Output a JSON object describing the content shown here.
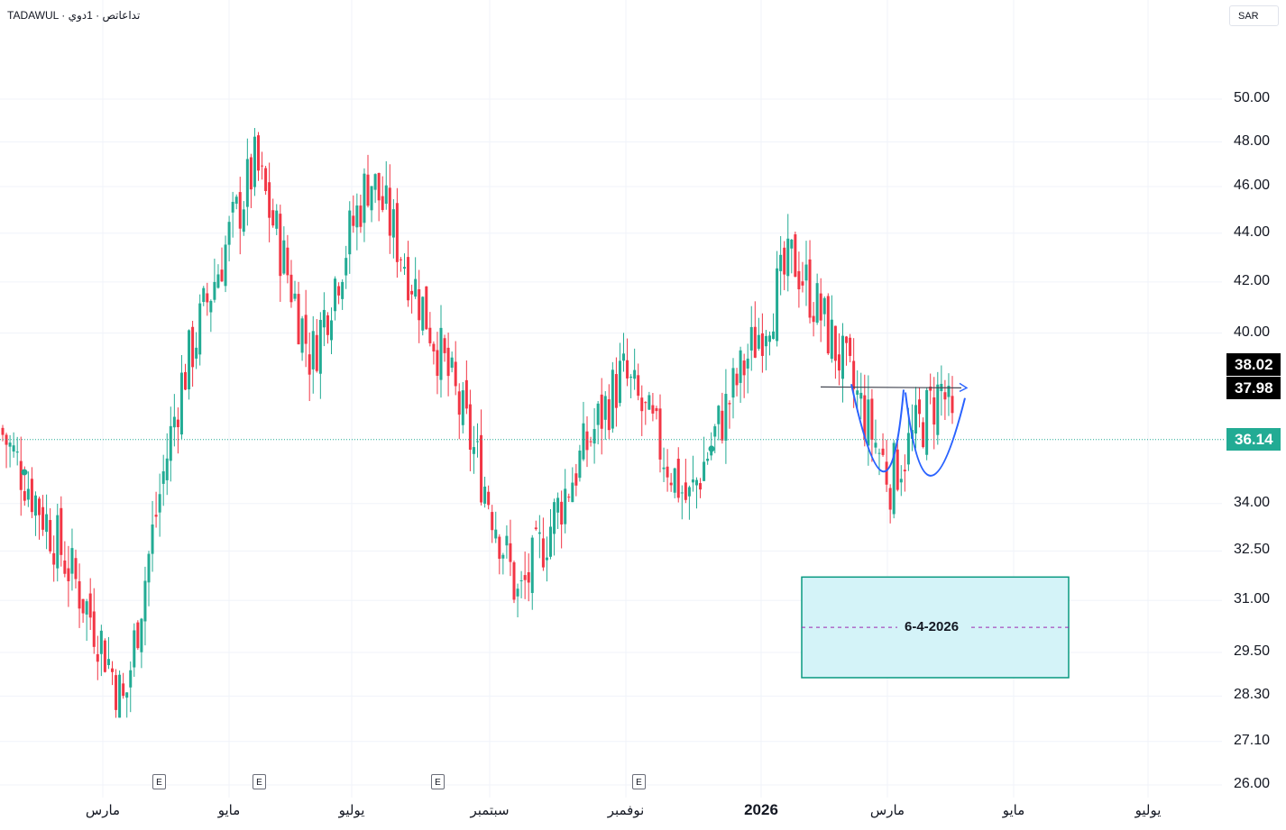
{
  "header": {
    "exchange": "TADAWUL",
    "separator": "·",
    "session": "تداعاتص",
    "interval": "1دوي"
  },
  "currency_button": "SAR",
  "price_axis_labels": [
    "50.00",
    "48.00",
    "46.00",
    "44.00",
    "42.00",
    "40.00",
    "34.00",
    "32.50",
    "31.00",
    "29.50",
    "28.30",
    "27.10",
    "26.00"
  ],
  "price_tags": {
    "upper": "38.02",
    "lower": "37.98",
    "last": "36.14"
  },
  "time_axis_labels": [
    "مارس",
    "مايو",
    "يوليو",
    "سبتمبر",
    "نوفمبر",
    "2026",
    "مارس",
    "مايو",
    "يوليو"
  ],
  "earnings_marker": "E",
  "target_box_label": "6-4-2026",
  "colors": {
    "up": "#22ab94",
    "down": "#f23645",
    "pattern_line": "#2962ff",
    "target_fill": "#d4f3f8",
    "target_border": "#089981",
    "tag_dark": "#000000",
    "tag_last": "#22ab94"
  },
  "chart_data": {
    "type": "candlestick",
    "y_scale": "log",
    "ylim": [
      26.0,
      51.5
    ],
    "x_axis_labels": [
      "مارس",
      "مايو",
      "يوليو",
      "سبتمبر",
      "نوفمبر",
      "2026",
      "مارس",
      "مايو",
      "يوليو"
    ],
    "anchors": [
      {
        "month_label": "مارس",
        "close": 36.5
      },
      {
        "month_label": "مارس",
        "close": 30.0
      },
      {
        "month_label": "مارس",
        "close": 28.0
      },
      {
        "month_label": "مايو",
        "close": 38.0
      },
      {
        "month_label": "مايو",
        "close": 47.0
      },
      {
        "month_label": "يوليو",
        "close": 39.0
      },
      {
        "month_label": "يوليو",
        "close": 46.5
      },
      {
        "month_label": "سبتمبر",
        "close": 33.0
      },
      {
        "month_label": "سبتمبر",
        "close": 31.0
      },
      {
        "month_label": "نوفمبر",
        "close": 38.5
      },
      {
        "month_label": "نوفمبر",
        "close": 34.0
      },
      {
        "month_label": "2026",
        "close": 43.0
      },
      {
        "month_label": "مارس",
        "close": 34.8
      },
      {
        "month_label": "مارس",
        "close": 38.0
      },
      {
        "month_label": "مارس",
        "close": 36.14
      }
    ],
    "last_price": 36.14,
    "resistance": 38.0,
    "target_zone": {
      "low": 28.8,
      "high": 31.7,
      "label": "6-4-2026"
    }
  }
}
